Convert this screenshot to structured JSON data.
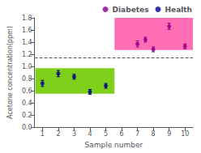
{
  "chart_data": {
    "type": "scatter",
    "xlabel": "Sample number",
    "ylabel": "Acetone concentration(ppm)",
    "xlim": [
      0.5,
      10.5
    ],
    "ylim": [
      0.0,
      1.8
    ],
    "xticks": [
      1,
      2,
      3,
      4,
      5,
      6,
      7,
      8,
      9,
      10
    ],
    "yticks": [
      {
        "value": 0.0,
        "label": "0.0"
      },
      0.2,
      0.4,
      0.6,
      0.8,
      {
        "value": 1.0,
        "label": "1.0"
      },
      1.2,
      1.4,
      1.6,
      1.8
    ],
    "grid": false,
    "legend": "upper right",
    "hline": {
      "y": 1.15,
      "color": "#555555",
      "line_style": "dashed"
    },
    "bands": [
      {
        "x": 0.55,
        "y": 0.55,
        "width": 5.0,
        "height": 0.42,
        "color": "#7FD01A"
      },
      {
        "x": 5.55,
        "y": 1.27,
        "width": 5.0,
        "height": 0.53,
        "color": "#FF6EB4"
      }
    ],
    "series": [
      {
        "name": "Diabetes",
        "color": "#8B008B",
        "x": [
          7,
          7.5,
          8,
          9,
          10
        ],
        "values": [
          1.37,
          1.44,
          1.28,
          1.66,
          1.33
        ],
        "yerr": [
          0.05,
          0.04,
          0.04,
          0.05,
          0.04
        ]
      },
      {
        "name": "Health",
        "color": "#00008B",
        "x": [
          1,
          2,
          3,
          4,
          5
        ],
        "values": [
          0.72,
          0.88,
          0.83,
          0.58,
          0.68
        ],
        "yerr": [
          0.05,
          0.05,
          0.04,
          0.04,
          0.04
        ]
      }
    ]
  }
}
